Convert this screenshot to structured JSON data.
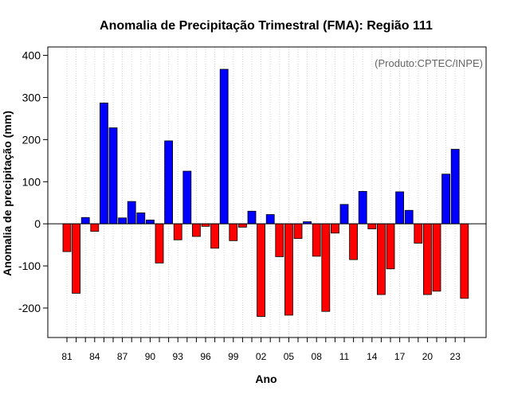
{
  "chart_data": {
    "type": "bar",
    "title": "Anomalia de Precipitação Trimestral (FMA): Região 111",
    "xlabel": "Ano",
    "ylabel": "Anomalia de precipitação (mm)",
    "annotation": "(Produto:CPTEC/INPE)",
    "ylim": [
      -270,
      420
    ],
    "yticks": [
      -200,
      -100,
      0,
      100,
      200,
      300,
      400
    ],
    "ytick_labels": [
      "-200",
      "-100",
      "0",
      "100",
      "200",
      "300",
      "400"
    ],
    "grid": "vertical dotted",
    "categories": [
      "1981",
      "1982",
      "1983",
      "1984",
      "1985",
      "1986",
      "1987",
      "1988",
      "1989",
      "1990",
      "1991",
      "1992",
      "1993",
      "1994",
      "1995",
      "1996",
      "1997",
      "1998",
      "1999",
      "2000",
      "2001",
      "2002",
      "2003",
      "2004",
      "2005",
      "2006",
      "2007",
      "2008",
      "2009",
      "2010",
      "2011",
      "2012",
      "2013",
      "2014",
      "2015",
      "2016",
      "2017",
      "2018",
      "2019",
      "2020",
      "2021",
      "2022",
      "2023",
      "2024"
    ],
    "values": [
      -66,
      -165,
      15,
      -18,
      287,
      228,
      14,
      53,
      26,
      9,
      -93,
      197,
      -38,
      125,
      -30,
      -6,
      -58,
      367,
      -40,
      -8,
      30,
      -220,
      22,
      -78,
      -217,
      -35,
      5,
      -77,
      -208,
      -22,
      46,
      -85,
      77,
      -12,
      -168,
      -107,
      76,
      32,
      -46,
      -168,
      -160,
      118,
      177,
      -177
    ],
    "xtick_labels": [
      "81",
      "84",
      "87",
      "90",
      "93",
      "96",
      "99",
      "02",
      "05",
      "08",
      "11",
      "14",
      "17",
      "20",
      "23"
    ],
    "colors": {
      "positive": "#0000ff",
      "negative": "#ff0000",
      "outline": "#000000",
      "grid": "#d3d3d3",
      "zero_line": "#000000"
    }
  }
}
